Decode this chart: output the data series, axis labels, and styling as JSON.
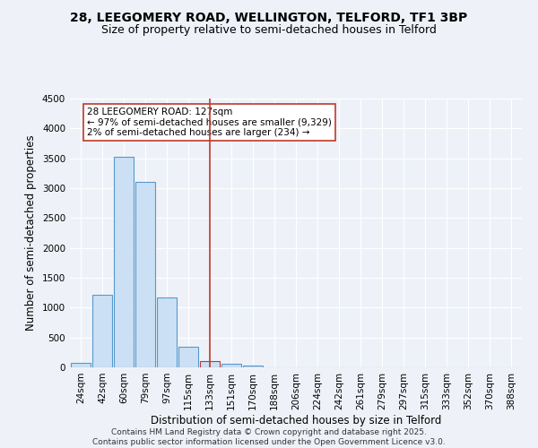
{
  "title_line1": "28, LEEGOMERY ROAD, WELLINGTON, TELFORD, TF1 3BP",
  "title_line2": "Size of property relative to semi-detached houses in Telford",
  "xlabel": "Distribution of semi-detached houses by size in Telford",
  "ylabel": "Number of semi-detached properties",
  "categories": [
    "24sqm",
    "42sqm",
    "60sqm",
    "79sqm",
    "97sqm",
    "115sqm",
    "133sqm",
    "151sqm",
    "170sqm",
    "188sqm",
    "206sqm",
    "224sqm",
    "242sqm",
    "261sqm",
    "279sqm",
    "297sqm",
    "315sqm",
    "333sqm",
    "352sqm",
    "370sqm",
    "388sqm"
  ],
  "values": [
    75,
    1220,
    3520,
    3100,
    1170,
    350,
    100,
    55,
    30,
    5,
    2,
    0,
    0,
    0,
    0,
    0,
    0,
    0,
    0,
    0,
    0
  ],
  "bar_color": "#cce0f5",
  "bar_edge_color": "#5599cc",
  "highlight_bar_index": 6,
  "highlight_bar_edge_color": "#c0392b",
  "vline_color": "#c0392b",
  "annotation_text": "28 LEEGOMERY ROAD: 127sqm\n← 97% of semi-detached houses are smaller (9,329)\n2% of semi-detached houses are larger (234) →",
  "annotation_box_color": "white",
  "annotation_box_edge_color": "#c0392b",
  "ylim": [
    0,
    4500
  ],
  "yticks": [
    0,
    500,
    1000,
    1500,
    2000,
    2500,
    3000,
    3500,
    4000,
    4500
  ],
  "background_color": "#eef2f8",
  "plot_background": "#eef2f8",
  "grid_color": "#ffffff",
  "footer_line1": "Contains HM Land Registry data © Crown copyright and database right 2025.",
  "footer_line2": "Contains public sector information licensed under the Open Government Licence v3.0.",
  "title_fontsize": 10,
  "subtitle_fontsize": 9,
  "axis_label_fontsize": 8.5,
  "tick_fontsize": 7.5,
  "annotation_fontsize": 7.5,
  "footer_fontsize": 6.5
}
